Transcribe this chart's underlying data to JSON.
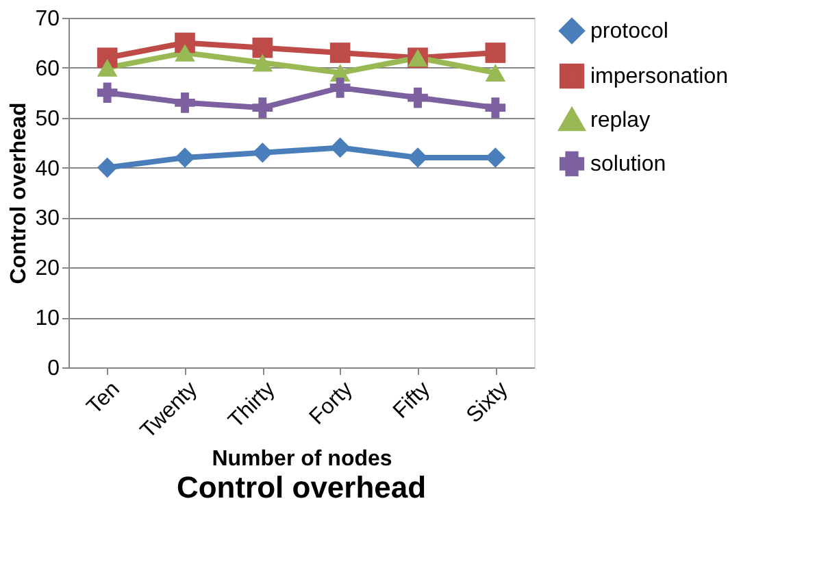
{
  "chart_data": {
    "type": "line",
    "title": "Control overhead",
    "xlabel": "Number of nodes",
    "ylabel": "Control overhead",
    "categories": [
      "Ten",
      "Twenty",
      "Thirty",
      "Forty",
      "Fifty",
      "Sixty"
    ],
    "series": [
      {
        "name": "protocol",
        "color": "#4a7ebb",
        "marker": "diamond",
        "values": [
          40,
          42,
          43,
          44,
          42,
          42
        ]
      },
      {
        "name": "impersonation",
        "color": "#be4b48",
        "marker": "square",
        "values": [
          62,
          65,
          64,
          63,
          62,
          63
        ]
      },
      {
        "name": "replay",
        "color": "#98b954",
        "marker": "triangle",
        "values": [
          60,
          63,
          61,
          59,
          62,
          59
        ]
      },
      {
        "name": "solution",
        "color": "#7d60a0",
        "marker": "cross",
        "values": [
          55,
          53,
          52,
          56,
          54,
          52
        ]
      }
    ],
    "ylim": [
      0,
      70
    ],
    "yticks": [
      0,
      10,
      20,
      30,
      40,
      50,
      60,
      70
    ],
    "grid": "y",
    "legend": "right",
    "line_style": "solid"
  }
}
